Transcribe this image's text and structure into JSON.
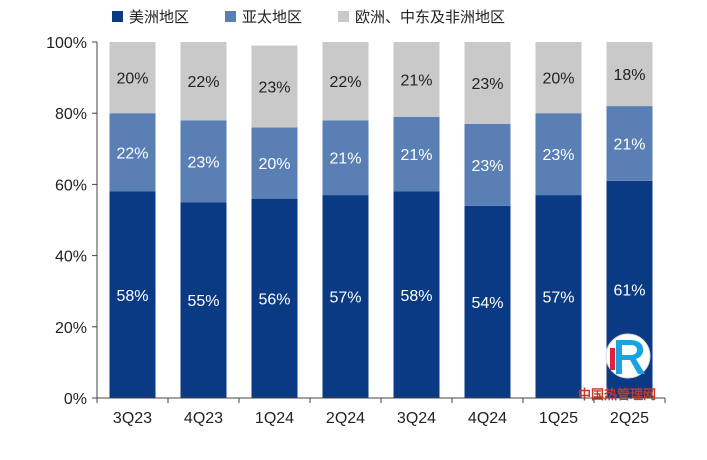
{
  "chart_data": {
    "type": "bar",
    "stacked": true,
    "categories": [
      "3Q23",
      "4Q23",
      "1Q24",
      "2Q24",
      "3Q24",
      "4Q24",
      "1Q25",
      "2Q25"
    ],
    "series": [
      {
        "name": "美洲地区",
        "color": "#0b3a84",
        "label_color": "#ffffff",
        "values": [
          58,
          55,
          56,
          57,
          58,
          54,
          57,
          61
        ]
      },
      {
        "name": "亚太地区",
        "color": "#5a7fb5",
        "label_color": "#ffffff",
        "values": [
          22,
          23,
          20,
          21,
          21,
          23,
          23,
          21
        ]
      },
      {
        "name": "欧洲、中东及非洲地区",
        "color": "#c9c9c9",
        "label_color": "#222222",
        "values": [
          20,
          22,
          23,
          22,
          21,
          23,
          20,
          18
        ]
      }
    ],
    "yticks": [
      "0%",
      "20%",
      "40%",
      "60%",
      "80%",
      "100%"
    ],
    "ylim": [
      0,
      100
    ],
    "legend_position": "top",
    "grid": false
  },
  "watermark": {
    "site": "中国热管理网"
  }
}
